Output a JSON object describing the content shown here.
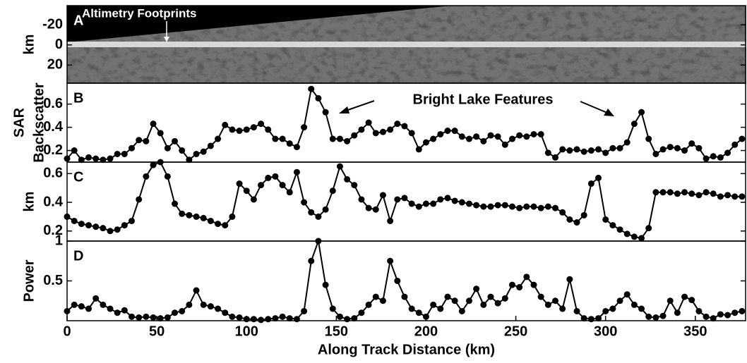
{
  "chart_data": [
    {
      "type": "image",
      "panel_label": "A",
      "ylabel": [
        "km"
      ],
      "annotation": "Altimetry Footprints",
      "xlim": [
        0,
        378
      ],
      "ylim": [
        38,
        -39
      ],
      "yticks": [
        -20,
        0,
        20
      ]
    },
    {
      "type": "line",
      "panel_label": "B",
      "ylabel": [
        "SAR",
        "Backscatter"
      ],
      "annotation": "Bright Lake Features",
      "xlim": [
        0,
        378
      ],
      "ylim": [
        0.1,
        0.78
      ],
      "yticks": [
        0.2,
        0.4,
        0.6
      ],
      "x": [
        0,
        4,
        8,
        12,
        16,
        20,
        24,
        28,
        32,
        36,
        40,
        44,
        48,
        52,
        56,
        60,
        64,
        68,
        72,
        76,
        80,
        84,
        88,
        92,
        96,
        100,
        104,
        108,
        112,
        116,
        120,
        124,
        128,
        132,
        136,
        140,
        144,
        148,
        152,
        156,
        160,
        164,
        168,
        172,
        176,
        180,
        184,
        188,
        192,
        196,
        200,
        204,
        208,
        212,
        216,
        220,
        224,
        228,
        232,
        236,
        240,
        244,
        248,
        252,
        256,
        260,
        264,
        268,
        272,
        276,
        280,
        284,
        288,
        292,
        296,
        300,
        304,
        308,
        312,
        316,
        320,
        324,
        328,
        332,
        336,
        340,
        344,
        348,
        352,
        356,
        360,
        364,
        368,
        372,
        376
      ],
      "series": [
        {
          "color": "#000000",
          "values": [
            0.13,
            0.2,
            0.12,
            0.14,
            0.13,
            0.12,
            0.13,
            0.17,
            0.17,
            0.22,
            0.29,
            0.28,
            0.43,
            0.35,
            0.22,
            0.28,
            0.2,
            0.12,
            0.17,
            0.19,
            0.24,
            0.3,
            0.42,
            0.38,
            0.37,
            0.38,
            0.4,
            0.43,
            0.38,
            0.3,
            0.3,
            0.26,
            0.23,
            0.4,
            0.73,
            0.65,
            0.53,
            0.3,
            0.3,
            0.28,
            0.33,
            0.38,
            0.44,
            0.35,
            0.36,
            0.38,
            0.43,
            0.41,
            0.35,
            0.21,
            0.27,
            0.3,
            0.34,
            0.37,
            0.37,
            0.32,
            0.3,
            0.32,
            0.28,
            0.33,
            0.32,
            0.25,
            0.3,
            0.33,
            0.32,
            0.34,
            0.34,
            0.18,
            0.14,
            0.21,
            0.2,
            0.21,
            0.19,
            0.2,
            0.21,
            0.18,
            0.22,
            0.22,
            0.27,
            0.43,
            0.53,
            0.3,
            0.17,
            0.21,
            0.23,
            0.22,
            0.2,
            0.26,
            0.22,
            0.13,
            0.15,
            0.14,
            0.18,
            0.25,
            0.3
          ]
        }
      ]
    },
    {
      "type": "line",
      "panel_label": "C",
      "ylabel": [
        "km"
      ],
      "xlim": [
        0,
        378
      ],
      "ylim": [
        0.13,
        0.68
      ],
      "yticks": [
        0.2,
        0.4,
        0.6
      ],
      "x": [
        0,
        4,
        8,
        12,
        16,
        20,
        24,
        28,
        32,
        36,
        40,
        44,
        48,
        52,
        56,
        60,
        64,
        68,
        72,
        76,
        80,
        84,
        88,
        92,
        96,
        100,
        104,
        108,
        112,
        116,
        120,
        124,
        128,
        132,
        136,
        140,
        144,
        148,
        152,
        156,
        160,
        164,
        168,
        172,
        176,
        180,
        184,
        188,
        192,
        196,
        200,
        204,
        208,
        212,
        216,
        220,
        224,
        228,
        232,
        236,
        240,
        244,
        248,
        252,
        256,
        260,
        264,
        268,
        272,
        276,
        280,
        284,
        288,
        292,
        296,
        300,
        304,
        308,
        312,
        316,
        320,
        324,
        328,
        332,
        336,
        340,
        344,
        348,
        352,
        356,
        360,
        364,
        368,
        372,
        376
      ],
      "series": [
        {
          "color": "#000000",
          "values": [
            0.3,
            0.27,
            0.25,
            0.24,
            0.23,
            0.22,
            0.2,
            0.21,
            0.24,
            0.27,
            0.42,
            0.58,
            0.66,
            0.68,
            0.58,
            0.39,
            0.32,
            0.31,
            0.3,
            0.29,
            0.27,
            0.25,
            0.24,
            0.3,
            0.53,
            0.48,
            0.42,
            0.52,
            0.57,
            0.58,
            0.52,
            0.47,
            0.61,
            0.4,
            0.33,
            0.3,
            0.35,
            0.48,
            0.65,
            0.56,
            0.52,
            0.42,
            0.36,
            0.35,
            0.45,
            0.27,
            0.42,
            0.43,
            0.39,
            0.37,
            0.39,
            0.39,
            0.42,
            0.43,
            0.41,
            0.4,
            0.39,
            0.38,
            0.37,
            0.37,
            0.38,
            0.38,
            0.37,
            0.36,
            0.37,
            0.37,
            0.36,
            0.37,
            0.36,
            0.33,
            0.28,
            0.26,
            0.31,
            0.53,
            0.57,
            0.28,
            0.24,
            0.21,
            0.18,
            0.16,
            0.15,
            0.22,
            0.47,
            0.47,
            0.47,
            0.46,
            0.47,
            0.46,
            0.45,
            0.47,
            0.46,
            0.44,
            0.45,
            0.44,
            0.44
          ]
        }
      ]
    },
    {
      "type": "line",
      "panel_label": "D",
      "ylabel": [
        "Power"
      ],
      "xlabel": "Along Track Distance (km)",
      "xlim": [
        0,
        378
      ],
      "ylim": [
        0,
        1
      ],
      "yticks": [
        0.5,
        1
      ],
      "xticks": [
        0,
        50,
        100,
        150,
        200,
        250,
        300,
        350
      ],
      "x": [
        0,
        4,
        8,
        12,
        16,
        20,
        24,
        28,
        32,
        36,
        40,
        44,
        48,
        52,
        56,
        60,
        64,
        68,
        72,
        76,
        80,
        84,
        88,
        92,
        96,
        100,
        104,
        108,
        112,
        116,
        120,
        124,
        128,
        132,
        136,
        140,
        144,
        148,
        152,
        156,
        160,
        164,
        168,
        172,
        176,
        180,
        184,
        188,
        192,
        196,
        200,
        204,
        208,
        212,
        216,
        220,
        224,
        228,
        232,
        236,
        240,
        244,
        248,
        252,
        256,
        260,
        264,
        268,
        272,
        276,
        280,
        284,
        288,
        292,
        296,
        300,
        304,
        308,
        312,
        316,
        320,
        324,
        328,
        332,
        336,
        340,
        344,
        348,
        352,
        356,
        360,
        364,
        368,
        372,
        376
      ],
      "series": [
        {
          "color": "#000000",
          "values": [
            0.12,
            0.2,
            0.18,
            0.15,
            0.28,
            0.2,
            0.15,
            0.1,
            0.13,
            0.05,
            0.04,
            0.05,
            0.04,
            0.03,
            0.04,
            0.1,
            0.12,
            0.2,
            0.38,
            0.2,
            0.18,
            0.15,
            0.1,
            0.05,
            0.04,
            0.02,
            0.02,
            0.01,
            0.02,
            0.03,
            0.05,
            0.03,
            0.02,
            0.12,
            0.75,
            1,
            0.45,
            0.15,
            0.05,
            0.02,
            0.03,
            0.1,
            0.2,
            0.3,
            0.25,
            0.75,
            0.5,
            0.3,
            0.15,
            0.1,
            0.05,
            0.2,
            0.15,
            0.3,
            0.25,
            0.12,
            0.25,
            0.4,
            0.2,
            0.3,
            0.22,
            0.28,
            0.45,
            0.42,
            0.55,
            0.45,
            0.3,
            0.2,
            0.25,
            0.15,
            0.52,
            0.12,
            0.03,
            0.02,
            0.03,
            0.12,
            0.15,
            0.25,
            0.33,
            0.2,
            0.15,
            0.05,
            0.04,
            0.06,
            0.25,
            0.1,
            0.3,
            0.26,
            0.12,
            0.05,
            0.03,
            0.08,
            0.07,
            0.1,
            0.12
          ]
        }
      ]
    }
  ]
}
